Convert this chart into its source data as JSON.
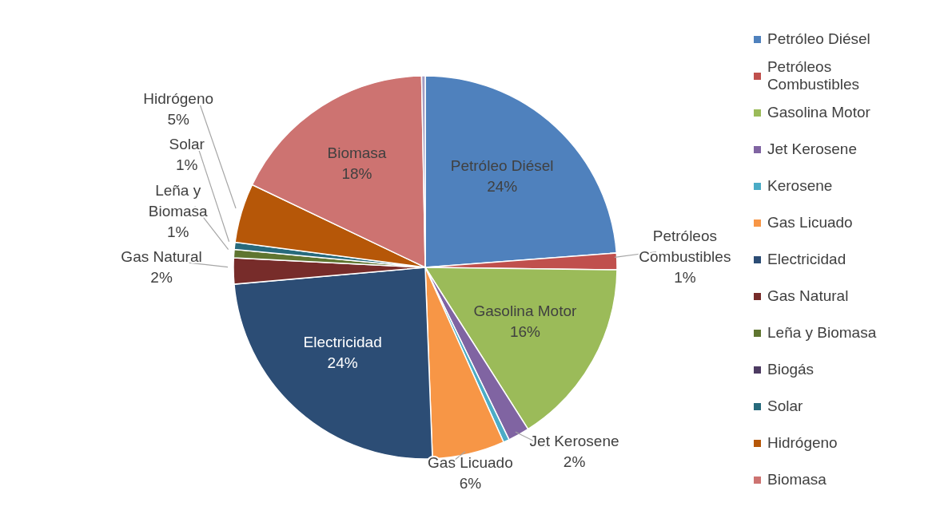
{
  "chart_data": {
    "type": "pie",
    "categories": [
      "Petróleo Diésel",
      "Petróleos Combustibles",
      "Gasolina Motor",
      "Jet Kerosene",
      "Kerosene",
      "Gas Licuado",
      "Electricidad",
      "Gas Natural",
      "Leña y Biomasa",
      "Biogás",
      "Solar",
      "Hidrógeno",
      "Biomasa",
      null
    ],
    "values": [
      23.8,
      1.4,
      15.8,
      1.8,
      0.5,
      6.1,
      24.2,
      2.2,
      0.7,
      null,
      0.6,
      5.0,
      17.6,
      0.3
    ],
    "colors": [
      "#4f81bd",
      "#c0504d",
      "#9bbb59",
      "#8064a2",
      "#4bacc6",
      "#f79646",
      "#2c4d75",
      "#772c2a",
      "#5f7530",
      "#4d3b62",
      "#276a7c",
      "#b65708",
      "#cd7371",
      "#a49cc0"
    ],
    "value_labels": [
      "24%",
      "1%",
      "16%",
      "2%",
      null,
      "6%",
      "24%",
      "2%",
      "1%",
      null,
      "1%",
      "5%",
      "18%",
      null
    ],
    "legend": "right"
  }
}
